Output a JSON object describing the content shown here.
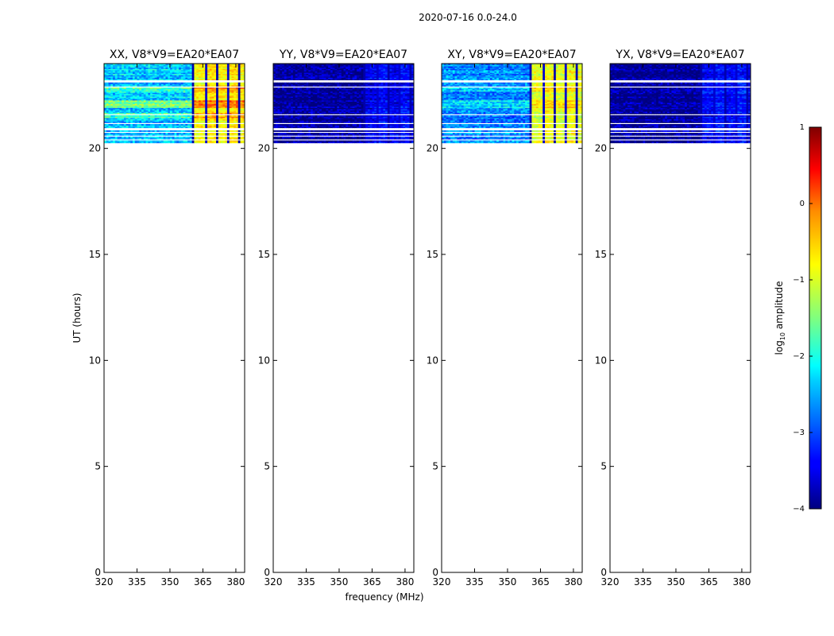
{
  "figure": {
    "suptitle": "2020-07-16 0.0-24.0",
    "ylabel": "UT (hours)",
    "xlabel": "frequency (MHz)"
  },
  "chart_data": {
    "type": "heatmap",
    "colormap": "jet",
    "title": "2020-07-16 0.0-24.0",
    "xlabel": "frequency (MHz)",
    "ylabel": "UT (hours)",
    "xlim": [
      320,
      384
    ],
    "ylim": [
      0,
      24
    ],
    "xticks": [
      320,
      335,
      350,
      365,
      380
    ],
    "yticks": [
      0,
      5,
      10,
      15,
      20
    ],
    "data_time_range": [
      20.2,
      24.0
    ],
    "colorbar": {
      "label": "log10 amplitude",
      "label_base": "log",
      "label_sub": "10",
      "label_rest": " amplitude",
      "range": [
        -4,
        1
      ],
      "ticks": [
        1,
        0,
        -1,
        -2,
        -3,
        -4
      ]
    },
    "flagged_row_bands_hours": [
      [
        20.2,
        20.25
      ],
      [
        20.4,
        20.45
      ],
      [
        20.55,
        20.6
      ],
      [
        20.75,
        20.8
      ],
      [
        20.88,
        20.95
      ],
      [
        21.15,
        21.2
      ],
      [
        21.55,
        21.6
      ],
      [
        22.55,
        22.6
      ],
      [
        22.9,
        22.95
      ],
      [
        23.1,
        23.2
      ],
      [
        23.68,
        23.72
      ]
    ],
    "panels": [
      {
        "name": "xx",
        "title": "XX, V8*V9=EA20*EA07",
        "base_log_amplitude": -2.4,
        "strong_rows": [
          [
            21.9,
            22.3,
            1.0
          ],
          [
            21.45,
            21.7,
            0.6
          ],
          [
            22.7,
            22.95,
            0.5
          ]
        ],
        "high_band_mhz": [
          360,
          383
        ],
        "high_band_log_amplitude": -0.8
      },
      {
        "name": "yy",
        "title": "YY, V8*V9=EA20*EA07",
        "base_log_amplitude": -3.9,
        "strong_rows": [],
        "high_band_mhz": [
          361,
          383
        ],
        "high_band_log_amplitude": -3.5
      },
      {
        "name": "xy",
        "title": "XY, V8*V9=EA20*EA07",
        "base_log_amplitude": -2.7,
        "strong_rows": [
          [
            21.9,
            22.3,
            0.4
          ],
          [
            22.7,
            22.95,
            0.3
          ]
        ],
        "high_band_mhz": [
          360,
          383
        ],
        "high_band_log_amplitude": -1.0
      },
      {
        "name": "yx",
        "title": "YX, V8*V9=EA20*EA07",
        "base_log_amplitude": -3.9,
        "strong_rows": [],
        "high_band_mhz": [
          361,
          383
        ],
        "high_band_log_amplitude": -3.4
      }
    ]
  }
}
